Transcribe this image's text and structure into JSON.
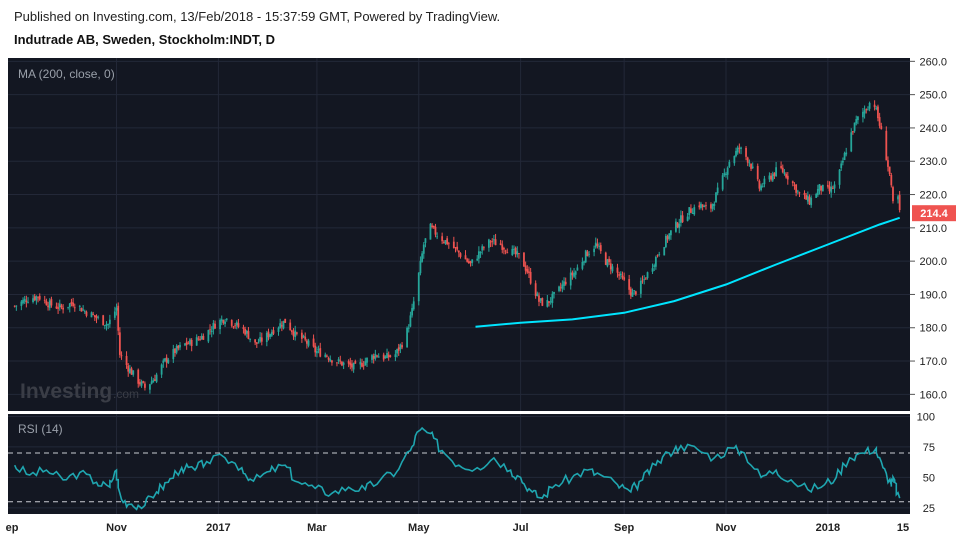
{
  "header": {
    "published": "Published on Investing.com, 13/Feb/2018 - 15:37:59 GMT, Powered by TradingView.",
    "instrument": "Indutrade AB, Sweden, Stockholm:INDT, D"
  },
  "indicators": {
    "ma_label": "MA (200, close, 0)",
    "rsi_label": "RSI (14)"
  },
  "watermark": {
    "main": "Investing",
    "suffix": ".com"
  },
  "colors": {
    "background": "#131722",
    "up": "#26a69a",
    "down": "#ef5350",
    "ma": "#00e5ff",
    "rsi": "#1fa6b0",
    "last_price_tag": "#ef5350"
  },
  "chart_data": {
    "type": "candlestick",
    "price_axis": {
      "ylim": [
        155,
        261
      ],
      "ticks": [
        160,
        170,
        180,
        190,
        200,
        210,
        220,
        230,
        240,
        250,
        260
      ]
    },
    "rsi_axis": {
      "ylim": [
        20,
        102
      ],
      "ticks": [
        25,
        50,
        75,
        100
      ],
      "bands": [
        30,
        70
      ]
    },
    "time_axis": [
      "ep",
      "Nov",
      "2017",
      "Mar",
      "May",
      "Jul",
      "Sep",
      "Nov",
      "2018",
      "15"
    ],
    "last_price": "214.4",
    "price_path": [
      [
        "2016-09-01",
        186.5
      ],
      [
        "2016-09-08",
        188.5
      ],
      [
        "2016-09-15",
        189.5
      ],
      [
        "2016-09-22",
        187
      ],
      [
        "2016-09-29",
        186
      ],
      [
        "2016-10-06",
        187.5
      ],
      [
        "2016-10-13",
        185
      ],
      [
        "2016-10-20",
        183
      ],
      [
        "2016-10-27",
        181
      ],
      [
        "2016-11-01",
        186
      ],
      [
        "2016-11-03",
        172
      ],
      [
        "2016-11-08",
        168
      ],
      [
        "2016-11-14",
        164
      ],
      [
        "2016-11-18",
        162
      ],
      [
        "2016-11-24",
        165
      ],
      [
        "2016-11-30",
        170
      ],
      [
        "2016-12-06",
        173
      ],
      [
        "2016-12-12",
        175
      ],
      [
        "2016-12-18",
        176
      ],
      [
        "2016-12-24",
        178
      ],
      [
        "2016-12-30",
        181
      ],
      [
        "2017-01-05",
        183
      ],
      [
        "2017-01-11",
        181
      ],
      [
        "2017-01-17",
        179
      ],
      [
        "2017-01-23",
        175
      ],
      [
        "2017-01-29",
        177
      ],
      [
        "2017-02-04",
        180
      ],
      [
        "2017-02-10",
        182
      ],
      [
        "2017-02-16",
        178
      ],
      [
        "2017-02-22",
        176
      ],
      [
        "2017-02-28",
        173
      ],
      [
        "2017-03-06",
        172
      ],
      [
        "2017-03-12",
        170
      ],
      [
        "2017-03-18",
        169
      ],
      [
        "2017-03-24",
        168
      ],
      [
        "2017-03-30",
        170
      ],
      [
        "2017-04-05",
        172
      ],
      [
        "2017-04-11",
        171
      ],
      [
        "2017-04-17",
        172
      ],
      [
        "2017-04-23",
        177
      ],
      [
        "2017-04-27",
        185
      ],
      [
        "2017-05-01",
        196
      ],
      [
        "2017-05-04",
        205
      ],
      [
        "2017-05-08",
        210
      ],
      [
        "2017-05-14",
        207
      ],
      [
        "2017-05-20",
        205
      ],
      [
        "2017-05-26",
        202
      ],
      [
        "2017-06-01",
        199
      ],
      [
        "2017-06-07",
        203
      ],
      [
        "2017-06-13",
        206
      ],
      [
        "2017-06-19",
        205
      ],
      [
        "2017-06-25",
        203
      ],
      [
        "2017-07-01",
        201
      ],
      [
        "2017-07-05",
        197
      ],
      [
        "2017-07-08",
        193
      ],
      [
        "2017-07-12",
        188
      ],
      [
        "2017-07-16",
        187
      ],
      [
        "2017-07-22",
        190
      ],
      [
        "2017-07-28",
        194
      ],
      [
        "2017-08-03",
        197
      ],
      [
        "2017-08-09",
        202
      ],
      [
        "2017-08-15",
        205
      ],
      [
        "2017-08-21",
        200
      ],
      [
        "2017-08-27",
        197
      ],
      [
        "2017-09-02",
        193
      ],
      [
        "2017-09-06",
        190
      ],
      [
        "2017-09-10",
        192
      ],
      [
        "2017-09-16",
        197
      ],
      [
        "2017-09-22",
        203
      ],
      [
        "2017-09-28",
        208
      ],
      [
        "2017-10-04",
        212
      ],
      [
        "2017-10-10",
        215
      ],
      [
        "2017-10-16",
        217
      ],
      [
        "2017-10-22",
        215
      ],
      [
        "2017-10-28",
        222
      ],
      [
        "2017-11-03",
        230
      ],
      [
        "2017-11-09",
        234
      ],
      [
        "2017-11-15",
        230
      ],
      [
        "2017-11-21",
        222
      ],
      [
        "2017-11-27",
        225
      ],
      [
        "2017-12-03",
        228
      ],
      [
        "2017-12-09",
        225
      ],
      [
        "2017-12-15",
        220
      ],
      [
        "2017-12-21",
        218
      ],
      [
        "2017-12-27",
        222
      ],
      [
        "2018-01-02",
        221
      ],
      [
        "2018-01-06",
        223
      ],
      [
        "2018-01-10",
        230
      ],
      [
        "2018-01-14",
        237
      ],
      [
        "2018-01-18",
        242
      ],
      [
        "2018-01-24",
        246
      ],
      [
        "2018-01-28",
        249
      ],
      [
        "2018-02-01",
        241
      ],
      [
        "2018-02-04",
        234
      ],
      [
        "2018-02-07",
        226
      ],
      [
        "2018-02-09",
        217
      ],
      [
        "2018-02-11",
        226
      ],
      [
        "2018-02-12",
        219
      ],
      [
        "2018-02-13",
        214.4
      ]
    ],
    "ma_path": [
      [
        "2017-06-04",
        180.3
      ],
      [
        "2017-07-01",
        181.5
      ],
      [
        "2017-08-01",
        182.5
      ],
      [
        "2017-09-01",
        184.5
      ],
      [
        "2017-10-01",
        188
      ],
      [
        "2017-11-01",
        193
      ],
      [
        "2017-12-01",
        199
      ],
      [
        "2018-01-01",
        205
      ],
      [
        "2018-02-01",
        211
      ],
      [
        "2018-02-13",
        213
      ]
    ],
    "rsi_path": [
      [
        "2016-09-01",
        60
      ],
      [
        "2016-09-10",
        52
      ],
      [
        "2016-09-20",
        56
      ],
      [
        "2016-09-30",
        48
      ],
      [
        "2016-10-10",
        54
      ],
      [
        "2016-10-20",
        46
      ],
      [
        "2016-10-28",
        42
      ],
      [
        "2016-11-01",
        56
      ],
      [
        "2016-11-04",
        32
      ],
      [
        "2016-11-10",
        28
      ],
      [
        "2016-11-18",
        27
      ],
      [
        "2016-11-25",
        38
      ],
      [
        "2016-12-02",
        46
      ],
      [
        "2016-12-10",
        58
      ],
      [
        "2016-12-18",
        56
      ],
      [
        "2016-12-25",
        63
      ],
      [
        "2017-01-05",
        66
      ],
      [
        "2017-01-15",
        58
      ],
      [
        "2017-01-22",
        47
      ],
      [
        "2017-02-01",
        55
      ],
      [
        "2017-02-10",
        60
      ],
      [
        "2017-02-18",
        46
      ],
      [
        "2017-02-28",
        41
      ],
      [
        "2017-03-10",
        37
      ],
      [
        "2017-03-20",
        42
      ],
      [
        "2017-03-30",
        40
      ],
      [
        "2017-04-08",
        48
      ],
      [
        "2017-04-18",
        55
      ],
      [
        "2017-04-26",
        72
      ],
      [
        "2017-05-02",
        89
      ],
      [
        "2017-05-08",
        86
      ],
      [
        "2017-05-15",
        72
      ],
      [
        "2017-05-25",
        60
      ],
      [
        "2017-06-05",
        58
      ],
      [
        "2017-06-15",
        66
      ],
      [
        "2017-06-25",
        56
      ],
      [
        "2017-07-01",
        50
      ],
      [
        "2017-07-08",
        38
      ],
      [
        "2017-07-14",
        33
      ],
      [
        "2017-07-22",
        44
      ],
      [
        "2017-08-01",
        50
      ],
      [
        "2017-08-10",
        56
      ],
      [
        "2017-08-18",
        52
      ],
      [
        "2017-08-28",
        44
      ],
      [
        "2017-09-05",
        38
      ],
      [
        "2017-09-12",
        48
      ],
      [
        "2017-09-20",
        60
      ],
      [
        "2017-09-28",
        70
      ],
      [
        "2017-10-05",
        76
      ],
      [
        "2017-10-15",
        73
      ],
      [
        "2017-10-25",
        66
      ],
      [
        "2017-11-05",
        74
      ],
      [
        "2017-11-12",
        70
      ],
      [
        "2017-11-22",
        50
      ],
      [
        "2017-12-01",
        56
      ],
      [
        "2017-12-10",
        48
      ],
      [
        "2017-12-20",
        40
      ],
      [
        "2017-12-30",
        44
      ],
      [
        "2018-01-06",
        50
      ],
      [
        "2018-01-14",
        66
      ],
      [
        "2018-01-22",
        70
      ],
      [
        "2018-01-30",
        74
      ],
      [
        "2018-02-03",
        58
      ],
      [
        "2018-02-08",
        44
      ],
      [
        "2018-02-10",
        48
      ],
      [
        "2018-02-13",
        33
      ]
    ]
  }
}
